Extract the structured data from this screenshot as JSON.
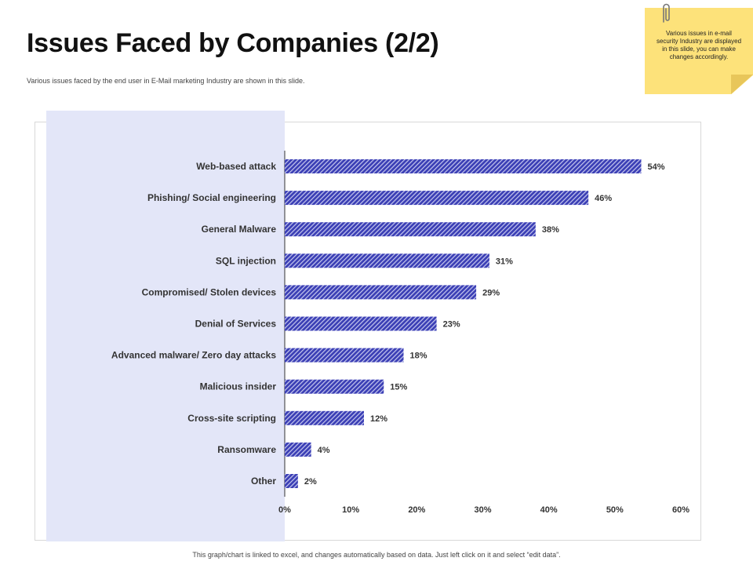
{
  "header": {
    "title": "Issues Faced by Companies (2/2)",
    "subtitle": "Various issues faced by the end user in E-Mail  marketing Industry are shown in this slide."
  },
  "sticky_note": {
    "text": "Various issues in e-mail security Industry are displayed in this slide, you can make changes accordingly.",
    "icon": "paperclip-icon"
  },
  "footer": {
    "text": "This graph/chart is linked to excel, and changes automatically based on data. Just left click on it and select “edit data”."
  },
  "colors": {
    "bar": "#3b3fb5",
    "bar_stripe": "#c7c9ef",
    "panel": "#e3e6f8",
    "sticky": "#fde27a"
  },
  "chart_data": {
    "type": "bar",
    "orientation": "horizontal",
    "title": "",
    "xlabel": "",
    "ylabel": "",
    "categories": [
      "Web-based attack",
      "Phishing/ Social engineering",
      "General Malware",
      "SQL injection",
      "Compromised/ Stolen devices",
      "Denial of Services",
      "Advanced malware/ Zero day attacks",
      "Malicious insider",
      "Cross-site scripting",
      "Ransomware",
      "Other"
    ],
    "values": [
      54,
      46,
      38,
      31,
      29,
      23,
      18,
      15,
      12,
      4,
      2
    ],
    "value_labels": [
      "54%",
      "46%",
      "38%",
      "31%",
      "29%",
      "23%",
      "18%",
      "15%",
      "12%",
      "4%",
      "2%"
    ],
    "xlim": [
      0,
      60
    ],
    "xticks": [
      0,
      10,
      20,
      30,
      40,
      50,
      60
    ],
    "xtick_labels": [
      "0%",
      "10%",
      "20%",
      "30%",
      "40%",
      "50%",
      "60%"
    ],
    "grid": false
  }
}
